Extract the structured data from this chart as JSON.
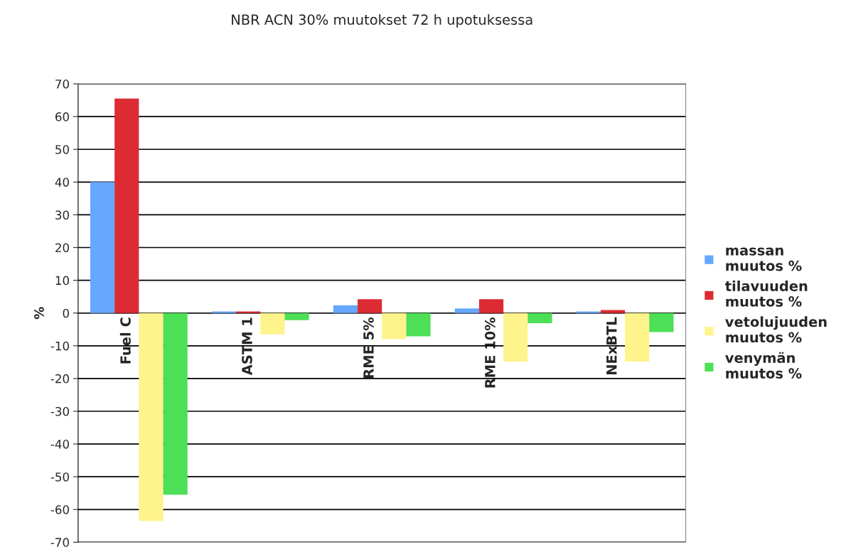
{
  "chart_data": {
    "type": "bar",
    "title": "NBR ACN 30% muutokset 72 h upotuksessa",
    "ylabel": "%",
    "categories": [
      "Fuel C",
      "ASTM 1",
      "RME 5%",
      "RME 10%",
      "NExBTL"
    ],
    "series": [
      {
        "name": "massan\nmuutos %",
        "color": "#66a8ff",
        "values": [
          40,
          0.5,
          2.4,
          1.4,
          0.5
        ]
      },
      {
        "name": "tilavuuden\nmuutos %",
        "color": "#dd2b33",
        "values": [
          65.5,
          0.5,
          4.2,
          4.2,
          0.9
        ]
      },
      {
        "name": "vetolujuuden\nmuutos %",
        "color": "#fff38c",
        "values": [
          -63.5,
          -6.5,
          -8,
          -14.8,
          -14.8
        ]
      },
      {
        "name": "venymän\nmuutos %",
        "color": "#4ddf55",
        "values": [
          -55.5,
          -2.2,
          -7.1,
          -3.1,
          -5.8
        ]
      }
    ],
    "ylim": [
      -70,
      70
    ],
    "yticks": [
      -70,
      -60,
      -50,
      -40,
      -30,
      -20,
      -10,
      0,
      10,
      20,
      30,
      40,
      50,
      60,
      70
    ],
    "grid": "y",
    "legend": "right"
  }
}
